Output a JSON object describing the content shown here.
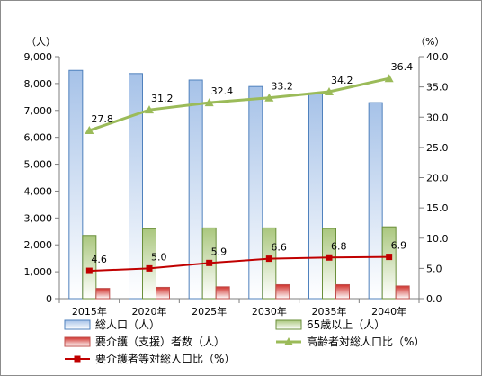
{
  "chart_data": {
    "type": "bar",
    "categories": [
      "2015年",
      "2020年",
      "2025年",
      "2030年",
      "2035年",
      "2040年"
    ],
    "y_left_unit": "（人）",
    "y_right_unit": "（%）",
    "y_left_ticks": [
      "0",
      "1,000",
      "2,000",
      "3,000",
      "4,000",
      "5,000",
      "6,000",
      "7,000",
      "8,000",
      "9,000"
    ],
    "y_right_ticks": [
      "0.0",
      "5.0",
      "10.0",
      "15.0",
      "20.0",
      "25.0",
      "30.0",
      "35.0",
      "40.0"
    ],
    "ylim_left": [
      0,
      9000
    ],
    "ylim_right": [
      0,
      40
    ],
    "grid": false,
    "legend_position": "bottom",
    "series": [
      {
        "name": "総人口（人）",
        "type": "bar",
        "axis": "left",
        "color": "#4f81bd",
        "values": [
          8490,
          8370,
          8130,
          7890,
          7640,
          7290
        ]
      },
      {
        "name": "65歳以上（人）",
        "type": "bar",
        "axis": "left",
        "color": "#9bbb59",
        "values": [
          2350,
          2600,
          2630,
          2630,
          2610,
          2670
        ]
      },
      {
        "name": "要介護（支援）者数（人）",
        "type": "bar",
        "axis": "left",
        "color": "#c0504d",
        "values": [
          380,
          420,
          440,
          520,
          520,
          470
        ]
      },
      {
        "name": "高齢者対総人口比（%）",
        "type": "line",
        "axis": "right",
        "color": "#9bbb59",
        "marker": "triangle",
        "values": [
          27.8,
          31.2,
          32.4,
          33.2,
          34.2,
          36.4
        ],
        "labels": [
          "27.8",
          "31.2",
          "32.4",
          "33.2",
          "34.2",
          "36.4"
        ]
      },
      {
        "name": "要介護者等対総人口比（%）",
        "type": "line",
        "axis": "right",
        "color": "#c00000",
        "marker": "square",
        "values": [
          4.6,
          5.0,
          5.9,
          6.6,
          6.8,
          6.9
        ],
        "labels": [
          "4.6",
          "5.0",
          "5.9",
          "6.6",
          "6.8",
          "6.9"
        ]
      }
    ]
  }
}
